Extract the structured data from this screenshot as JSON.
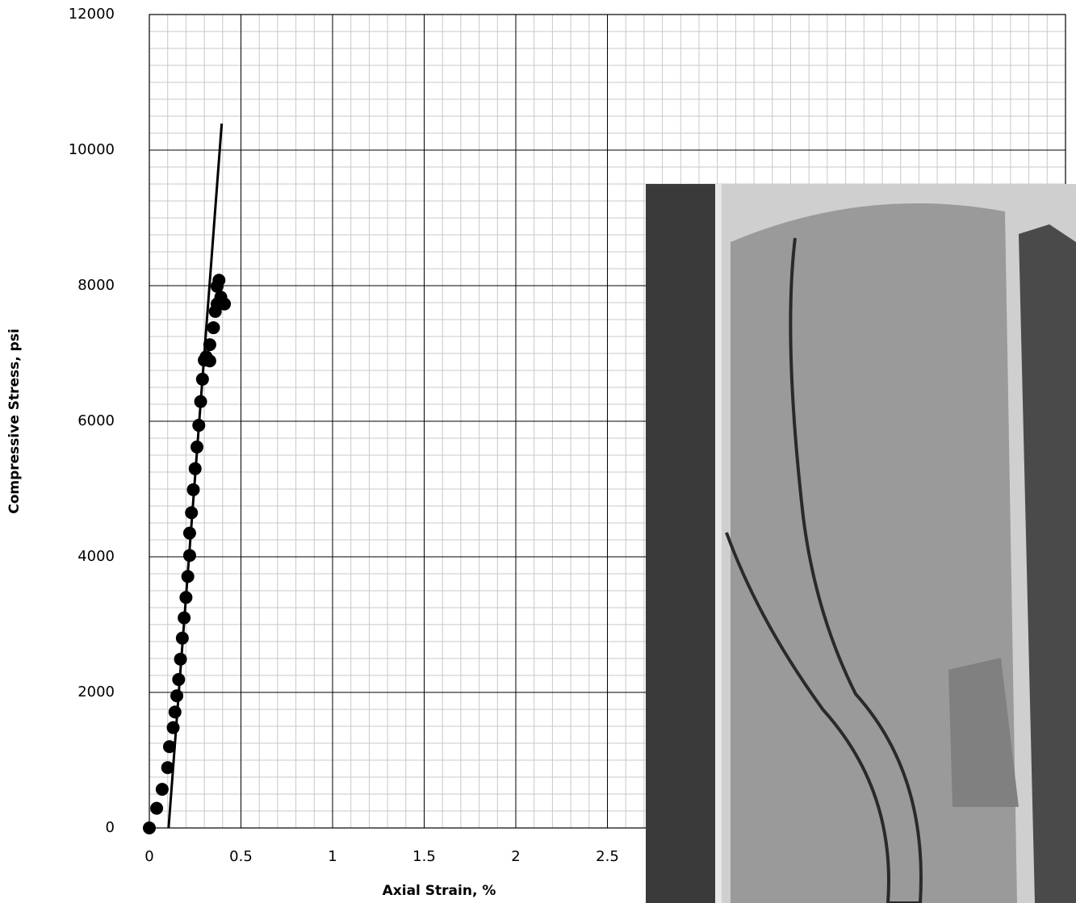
{
  "chart_data": {
    "type": "scatter",
    "x_label": "Axial Strain, %",
    "y_label": "Compressive Stress, psi",
    "xlim": [
      0,
      5
    ],
    "ylim": [
      0,
      12000
    ],
    "xticks": [
      0,
      0.5,
      1,
      1.5,
      2,
      2.5
    ],
    "yticks": [
      0,
      2000,
      4000,
      6000,
      8000,
      10000,
      12000
    ],
    "grid": true,
    "minor_grid": {
      "x": 0.1,
      "y": 250
    },
    "series": [
      {
        "mode": "markers",
        "color": "#000000",
        "x": [
          0,
          0.04,
          0.07,
          0.1,
          0.11,
          0.13,
          0.14,
          0.15,
          0.16,
          0.17,
          0.18,
          0.19,
          0.2,
          0.21,
          0.22,
          0.22,
          0.23,
          0.24,
          0.25,
          0.26,
          0.27,
          0.28,
          0.29,
          0.3,
          0.31,
          0.33,
          0.33,
          0.35,
          0.36,
          0.37,
          0.37,
          0.38,
          0.39,
          0.41
        ],
        "values": [
          0,
          290,
          570,
          890,
          1200,
          1480,
          1710,
          1950,
          2190,
          2490,
          2800,
          3100,
          3400,
          3710,
          4020,
          4350,
          4650,
          4990,
          5300,
          5620,
          5940,
          6290,
          6620,
          6900,
          6950,
          6890,
          7130,
          7380,
          7620,
          7730,
          7990,
          8080,
          7830,
          7730
        ]
      },
      {
        "mode": "line",
        "color": "#000000",
        "x": [
          0.105,
          0.395
        ],
        "values": [
          0,
          10390
        ]
      }
    ]
  }
}
